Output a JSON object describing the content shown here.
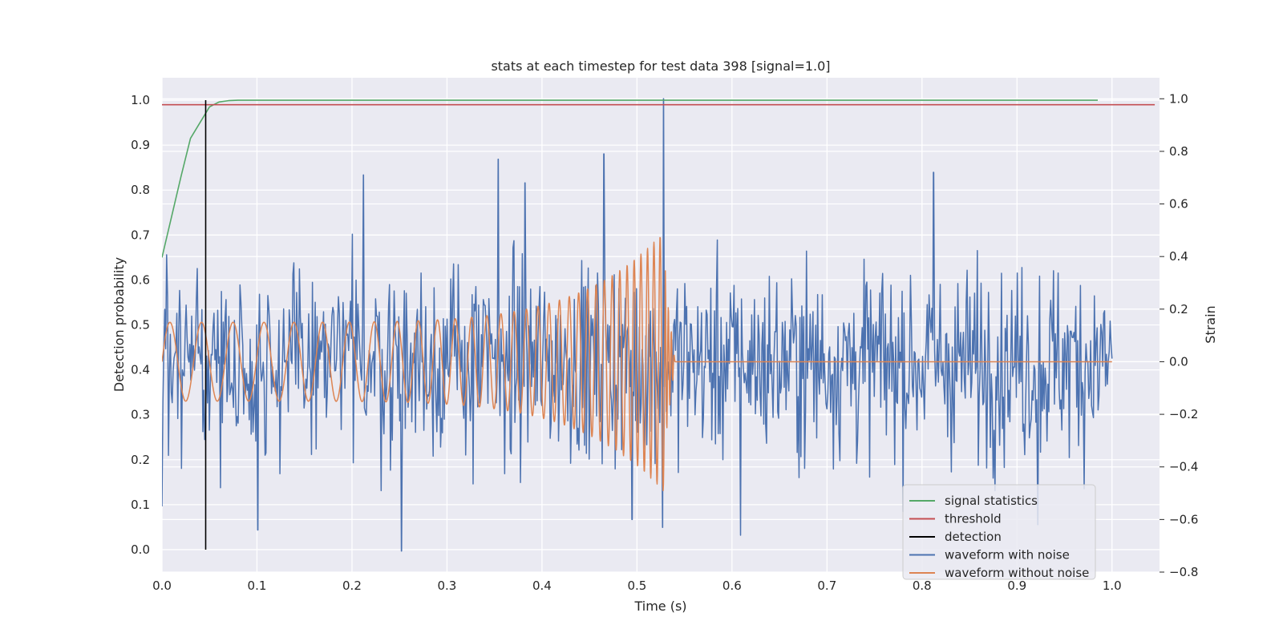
{
  "chart_data": {
    "type": "line",
    "title": "stats at each timestep for test data 398 [signal=1.0]",
    "xlabel": "Time (s)",
    "ylabel": "Detection probability",
    "y2label": "Strain",
    "xlim": [
      0.0,
      1.05
    ],
    "ylim": [
      -0.05,
      1.05
    ],
    "y2lim": [
      -0.8,
      1.08
    ],
    "x_ticks": [
      "0.0",
      "0.1",
      "0.2",
      "0.3",
      "0.4",
      "0.5",
      "0.6",
      "0.7",
      "0.8",
      "0.9",
      "1.0"
    ],
    "y_ticks": [
      "0.0",
      "0.1",
      "0.2",
      "0.3",
      "0.4",
      "0.5",
      "0.6",
      "0.7",
      "0.8",
      "0.9",
      "1.0"
    ],
    "y2_ticks": [
      "−0.8",
      "−0.6",
      "−0.4",
      "−0.2",
      "0.0",
      "0.2",
      "0.4",
      "0.6",
      "0.8",
      "1.0"
    ],
    "grid": true,
    "legend_position": "lower-right",
    "series": [
      {
        "name": "signal statistics",
        "color": "#55a868",
        "axis": "left",
        "x": [
          0.0,
          0.01,
          0.02,
          0.03,
          0.04,
          0.05,
          0.06,
          0.07,
          0.08,
          0.1,
          0.2,
          0.5,
          0.985
        ],
        "y": [
          0.65,
          0.74,
          0.83,
          0.915,
          0.95,
          0.985,
          0.996,
          0.999,
          1.0,
          1.0,
          1.0,
          1.0,
          1.0
        ]
      },
      {
        "name": "threshold",
        "color": "#c44e52",
        "axis": "left",
        "x": [
          0.0,
          1.045
        ],
        "y": [
          0.99,
          0.99
        ]
      },
      {
        "name": "detection",
        "color": "#000000",
        "axis": "left",
        "x": [
          0.046,
          0.046
        ],
        "y": [
          0.0,
          1.0
        ]
      },
      {
        "name": "waveform with noise",
        "color": "#4c72b0",
        "axis": "right",
        "generated": "noise",
        "x_range": [
          0.0,
          1.0
        ],
        "samples": 1024,
        "amplitude": 0.18,
        "peaks": [
          {
            "x": 0.0,
            "y": -0.55
          },
          {
            "x": 0.252,
            "y": -0.72
          },
          {
            "x": 0.101,
            "y": -0.64
          },
          {
            "x": 0.354,
            "y": 0.77
          },
          {
            "x": 0.465,
            "y": 0.79
          },
          {
            "x": 0.528,
            "y": 1.0
          },
          {
            "x": 0.527,
            "y": -0.63
          },
          {
            "x": 0.609,
            "y": -0.66
          },
          {
            "x": 0.812,
            "y": 0.72
          },
          {
            "x": 0.212,
            "y": 0.71
          },
          {
            "x": 0.382,
            "y": 0.68
          },
          {
            "x": 0.495,
            "y": -0.6
          },
          {
            "x": 0.922,
            "y": -0.62
          }
        ]
      },
      {
        "name": "waveform without noise",
        "color": "#dd8452",
        "axis": "right",
        "generated": "chirp",
        "x_range": [
          0.0,
          1.0
        ],
        "merger_time": 0.53,
        "ringdown_end": 0.54,
        "amplitude_start": 0.15,
        "amplitude_peak": 0.5,
        "frequency_start": 30,
        "frequency_end": 160
      }
    ]
  }
}
